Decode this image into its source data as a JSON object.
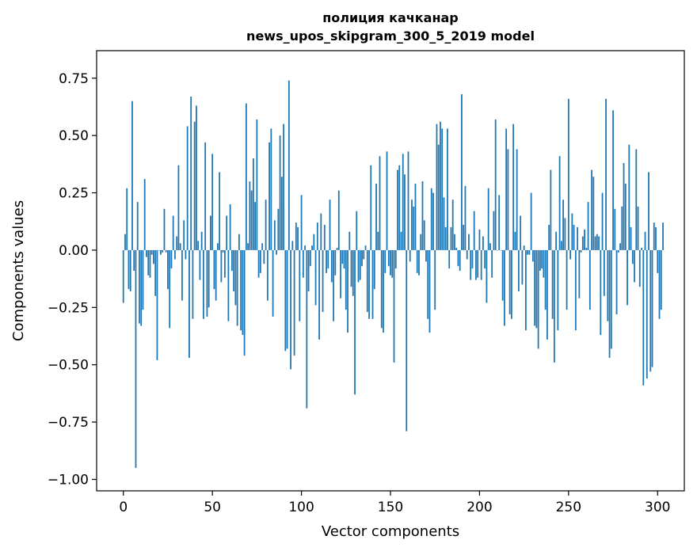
{
  "chart_data": {
    "type": "bar",
    "title": "полиция качканар",
    "subtitle": "news_upos_skipgram_300_5_2019 model",
    "xlabel": "Vector components",
    "ylabel": "Components values",
    "xlim": [
      -15,
      315
    ],
    "ylim": [
      -1.05,
      0.87
    ],
    "xticks": [
      0,
      50,
      100,
      150,
      200,
      250,
      300
    ],
    "xtick_labels": [
      "0",
      "50",
      "100",
      "150",
      "200",
      "250",
      "300"
    ],
    "yticks": [
      -1.0,
      -0.75,
      -0.5,
      -0.25,
      0.0,
      0.25,
      0.5,
      0.75
    ],
    "ytick_labels": [
      "−1.00",
      "−0.75",
      "−0.50",
      "−0.25",
      "0.00",
      "0.25",
      "0.50",
      "0.75"
    ],
    "grid": false,
    "bar_color": "#1f77b4",
    "x_start": 0,
    "values": [
      -0.23,
      0.07,
      0.27,
      -0.17,
      -0.18,
      0.65,
      -0.09,
      -0.95,
      0.21,
      -0.32,
      -0.33,
      -0.26,
      0.31,
      -0.03,
      -0.11,
      -0.12,
      -0.02,
      -0.06,
      -0.2,
      -0.48,
      0.0,
      -0.02,
      -0.01,
      0.18,
      -0.01,
      -0.17,
      -0.34,
      -0.08,
      0.15,
      -0.04,
      0.06,
      0.37,
      0.03,
      -0.22,
      0.13,
      -0.04,
      0.54,
      -0.47,
      0.67,
      -0.3,
      0.56,
      0.63,
      0.04,
      -0.13,
      0.08,
      -0.3,
      0.47,
      -0.29,
      -0.25,
      0.15,
      0.42,
      -0.17,
      -0.22,
      0.03,
      0.34,
      -0.14,
      -0.01,
      -0.12,
      0.15,
      -0.31,
      0.2,
      -0.09,
      -0.18,
      -0.24,
      -0.33,
      0.07,
      -0.35,
      -0.37,
      -0.46,
      0.64,
      0.03,
      0.3,
      0.26,
      0.4,
      0.21,
      0.57,
      -0.12,
      -0.1,
      0.03,
      -0.06,
      0.22,
      -0.22,
      0.47,
      0.53,
      -0.29,
      0.13,
      -0.02,
      0.18,
      0.5,
      0.32,
      0.55,
      -0.44,
      -0.43,
      0.74,
      -0.52,
      0.04,
      -0.46,
      0.12,
      0.1,
      -0.31,
      0.24,
      -0.12,
      0.02,
      -0.69,
      -0.18,
      -0.07,
      0.02,
      0.07,
      -0.24,
      0.12,
      -0.39,
      0.16,
      -0.27,
      0.11,
      -0.1,
      -0.08,
      0.22,
      -0.14,
      -0.31,
      -0.11,
      0.01,
      0.26,
      -0.21,
      -0.06,
      -0.08,
      -0.26,
      -0.36,
      0.08,
      -0.16,
      -0.2,
      -0.63,
      0.17,
      -0.14,
      -0.13,
      -0.07,
      -0.04,
      0.02,
      -0.27,
      -0.3,
      0.37,
      -0.3,
      -0.17,
      0.29,
      0.08,
      0.41,
      -0.34,
      -0.36,
      -0.1,
      0.43,
      -0.07,
      -0.11,
      -0.12,
      -0.49,
      -0.08,
      0.35,
      0.37,
      0.08,
      0.42,
      0.33,
      -0.79,
      0.43,
      -0.05,
      0.22,
      0.19,
      0.29,
      -0.1,
      -0.11,
      0.07,
      0.3,
      0.13,
      -0.05,
      -0.3,
      -0.36,
      0.27,
      0.25,
      -0.26,
      0.55,
      0.46,
      0.56,
      0.53,
      0.23,
      0.1,
      0.53,
      -0.08,
      0.1,
      0.22,
      0.07,
      0.01,
      -0.07,
      -0.09,
      0.68,
      0.11,
      0.28,
      -0.04,
      0.07,
      -0.13,
      -0.08,
      0.17,
      -0.13,
      -0.12,
      0.09,
      -0.13,
      0.06,
      -0.08,
      -0.23,
      0.27,
      0.03,
      -0.12,
      0.17,
      0.57,
      0.0,
      0.24,
      0.0,
      -0.22,
      -0.33,
      0.53,
      0.44,
      -0.28,
      -0.3,
      0.55,
      0.08,
      0.44,
      -0.18,
      0.15,
      -0.15,
      0.02,
      -0.35,
      -0.02,
      -0.02,
      0.25,
      -0.05,
      -0.33,
      -0.34,
      -0.43,
      -0.09,
      -0.08,
      -0.12,
      -0.26,
      -0.39,
      0.11,
      0.35,
      -0.3,
      -0.49,
      0.08,
      -0.35,
      0.41,
      0.04,
      0.22,
      0.14,
      -0.26,
      0.66,
      -0.04,
      0.16,
      0.11,
      -0.35,
      0.1,
      -0.21,
      -0.01,
      0.06,
      0.09,
      0.01,
      0.21,
      -0.26,
      0.35,
      0.32,
      0.06,
      0.07,
      0.06,
      -0.37,
      0.25,
      -0.2,
      0.66,
      -0.31,
      -0.47,
      -0.43,
      0.61,
      0.18,
      -0.28,
      -0.01,
      0.03,
      0.19,
      0.38,
      0.29,
      -0.24,
      0.46,
      0.1,
      -0.06,
      -0.14,
      0.44,
      0.19,
      -0.16,
      0.01,
      -0.59,
      0.08,
      -0.56,
      0.34,
      -0.53,
      -0.51,
      0.12,
      0.1,
      -0.1,
      -0.3,
      -0.26,
      0.12
    ]
  }
}
